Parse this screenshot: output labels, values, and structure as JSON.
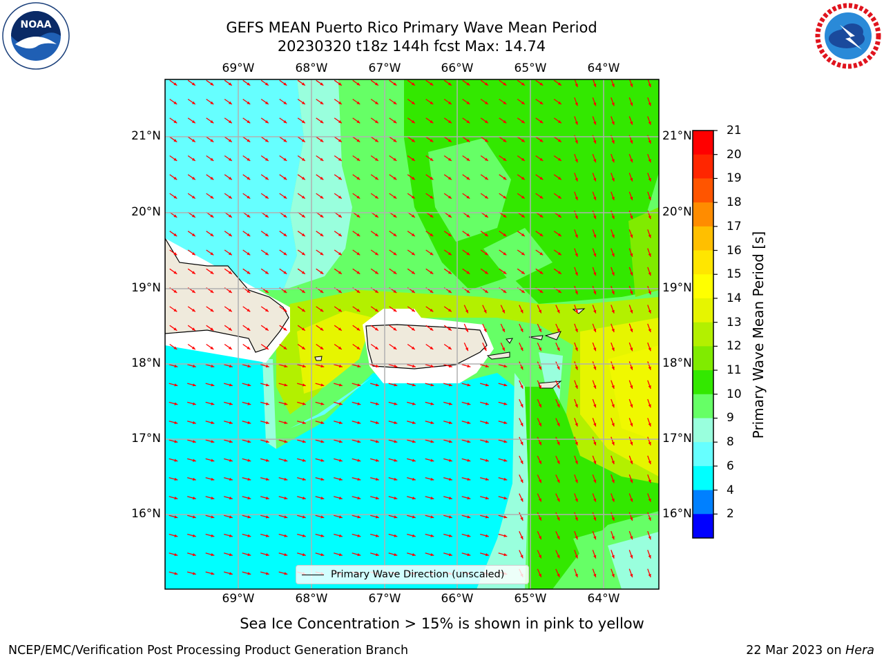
{
  "title": {
    "line1": "GEFS MEAN Puerto Rico Primary Wave Mean Period",
    "line2": "20230320 t18z 144h fcst   Max: 14.74"
  },
  "logos": {
    "left": "noaa-logo",
    "right": "nws-logo"
  },
  "map": {
    "lon_labels": [
      "69°W",
      "68°W",
      "67°W",
      "66°W",
      "65°W",
      "64°W"
    ],
    "lat_labels": [
      "21°N",
      "20°N",
      "19°N",
      "18°N",
      "17°N",
      "16°N"
    ],
    "lon_range": [
      -70.0,
      -63.25
    ],
    "lat_range": [
      15.0,
      21.75
    ],
    "land_color": "#efeadc",
    "arrow_color": "#ff0000"
  },
  "legend": {
    "label": "Primary Wave Direction (unscaled)"
  },
  "colorbar": {
    "label": "Primary Wave Mean Period [s]",
    "ticks": [
      "21",
      "20",
      "19",
      "18",
      "17",
      "16",
      "15",
      "14",
      "13",
      "12",
      "11",
      "10",
      "9",
      "8",
      "6",
      "4",
      "2"
    ],
    "colors": [
      "#ff0000",
      "#ff2600",
      "#ff5500",
      "#ff8c00",
      "#ffbf00",
      "#ffe600",
      "#ffff00",
      "#e6f500",
      "#b3f000",
      "#80eb00",
      "#33e800",
      "#66ff66",
      "#99ffdd",
      "#66ffff",
      "#00ffff",
      "#0080ff",
      "#0000ff"
    ]
  },
  "subnote": "Sea Ice Concentration > 15% is shown in pink to yellow",
  "footer": {
    "left": "NCEP/EMC/Verification Post Processing Product Generation Branch",
    "date": "22 Mar 2023 on ",
    "host": "Hera"
  }
}
